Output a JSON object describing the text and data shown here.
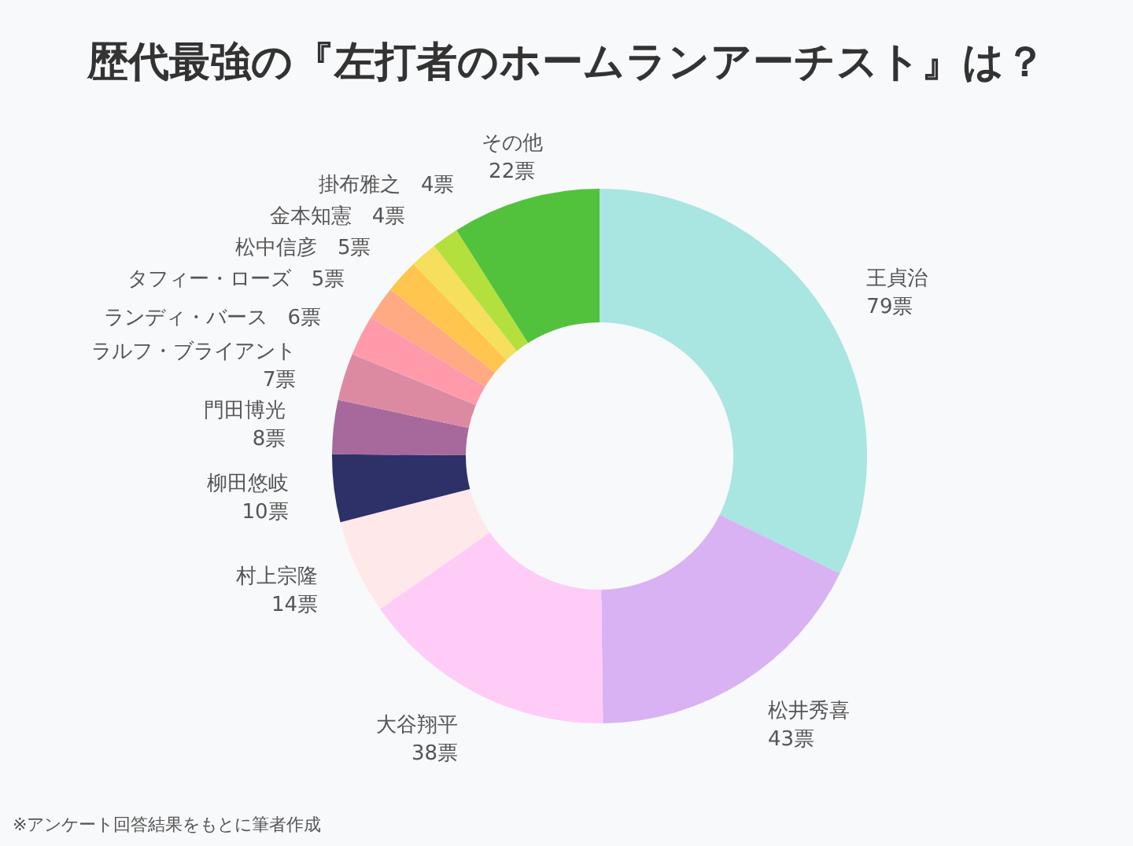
{
  "chart_data": {
    "type": "donut",
    "title": "歴代最強の『左打者のホームランアーチスト』は？",
    "categories": [
      "王貞治",
      "松井秀喜",
      "大谷翔平",
      "村上宗隆",
      "柳田悠岐",
      "門田博光",
      "ラルフ・ブライアント",
      "ランディ・バース",
      "タフィー・ローズ",
      "松中信彦",
      "金本知憲",
      "掛布雅之",
      "その他"
    ],
    "values": [
      79,
      43,
      38,
      14,
      10,
      8,
      7,
      6,
      5,
      5,
      4,
      4,
      22
    ],
    "value_labels": [
      "79票",
      "43票",
      "38票",
      "14票",
      "10票",
      "8票",
      "7票",
      "6票",
      "5票",
      "5票",
      "4票",
      "4票",
      "22票"
    ],
    "colors": [
      "#a9e5e1",
      "#d8b2f3",
      "#ffccf8",
      "#ffe8ea",
      "#2e3068",
      "#a7699b",
      "#dc8aa2",
      "#ff9aab",
      "#ffaa82",
      "#ffc54e",
      "#f6df5c",
      "#b4e03e",
      "#52c23c"
    ],
    "legend": false,
    "annotations": [
      "※アンケート回答結果をもとに筆者作成"
    ]
  }
}
